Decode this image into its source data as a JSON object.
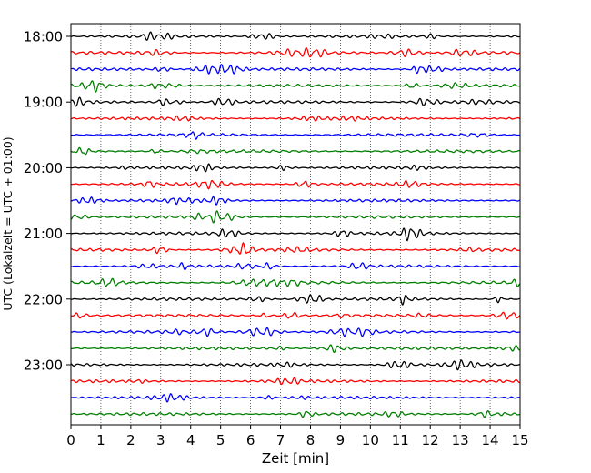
{
  "chart_data": {
    "type": "line",
    "title": "",
    "xlabel": "Zeit  [min]",
    "ylabel": "UTC (Lokalzeit = UTC + 01:00)",
    "xlim": [
      0,
      15
    ],
    "x_ticks": [
      "0",
      "1",
      "2",
      "3",
      "4",
      "5",
      "6",
      "7",
      "8",
      "9",
      "10",
      "11",
      "12",
      "13",
      "14",
      "15"
    ],
    "y_ticks": [
      "18:00",
      "19:00",
      "20:00",
      "21:00",
      "22:00",
      "23:00"
    ],
    "grid": "vertical dotted lines at each minute",
    "colors": [
      "#000000",
      "#ff0000",
      "#0000ff",
      "#007f00"
    ],
    "traces": [
      {
        "start": "18:00",
        "color": "#000000"
      },
      {
        "start": "18:15",
        "color": "#ff0000"
      },
      {
        "start": "18:30",
        "color": "#0000ff"
      },
      {
        "start": "18:45",
        "color": "#007f00"
      },
      {
        "start": "19:00",
        "color": "#000000"
      },
      {
        "start": "19:15",
        "color": "#ff0000"
      },
      {
        "start": "19:30",
        "color": "#0000ff"
      },
      {
        "start": "19:45",
        "color": "#007f00"
      },
      {
        "start": "20:00",
        "color": "#000000"
      },
      {
        "start": "20:15",
        "color": "#ff0000"
      },
      {
        "start": "20:30",
        "color": "#0000ff"
      },
      {
        "start": "20:45",
        "color": "#007f00"
      },
      {
        "start": "21:00",
        "color": "#000000"
      },
      {
        "start": "21:15",
        "color": "#ff0000"
      },
      {
        "start": "21:30",
        "color": "#0000ff"
      },
      {
        "start": "21:45",
        "color": "#007f00"
      },
      {
        "start": "22:00",
        "color": "#000000"
      },
      {
        "start": "22:15",
        "color": "#ff0000"
      },
      {
        "start": "22:30",
        "color": "#0000ff"
      },
      {
        "start": "22:45",
        "color": "#007f00"
      },
      {
        "start": "23:00",
        "color": "#000000"
      },
      {
        "start": "23:15",
        "color": "#ff0000"
      },
      {
        "start": "23:30",
        "color": "#0000ff"
      },
      {
        "start": "23:45",
        "color": "#007f00"
      }
    ]
  }
}
